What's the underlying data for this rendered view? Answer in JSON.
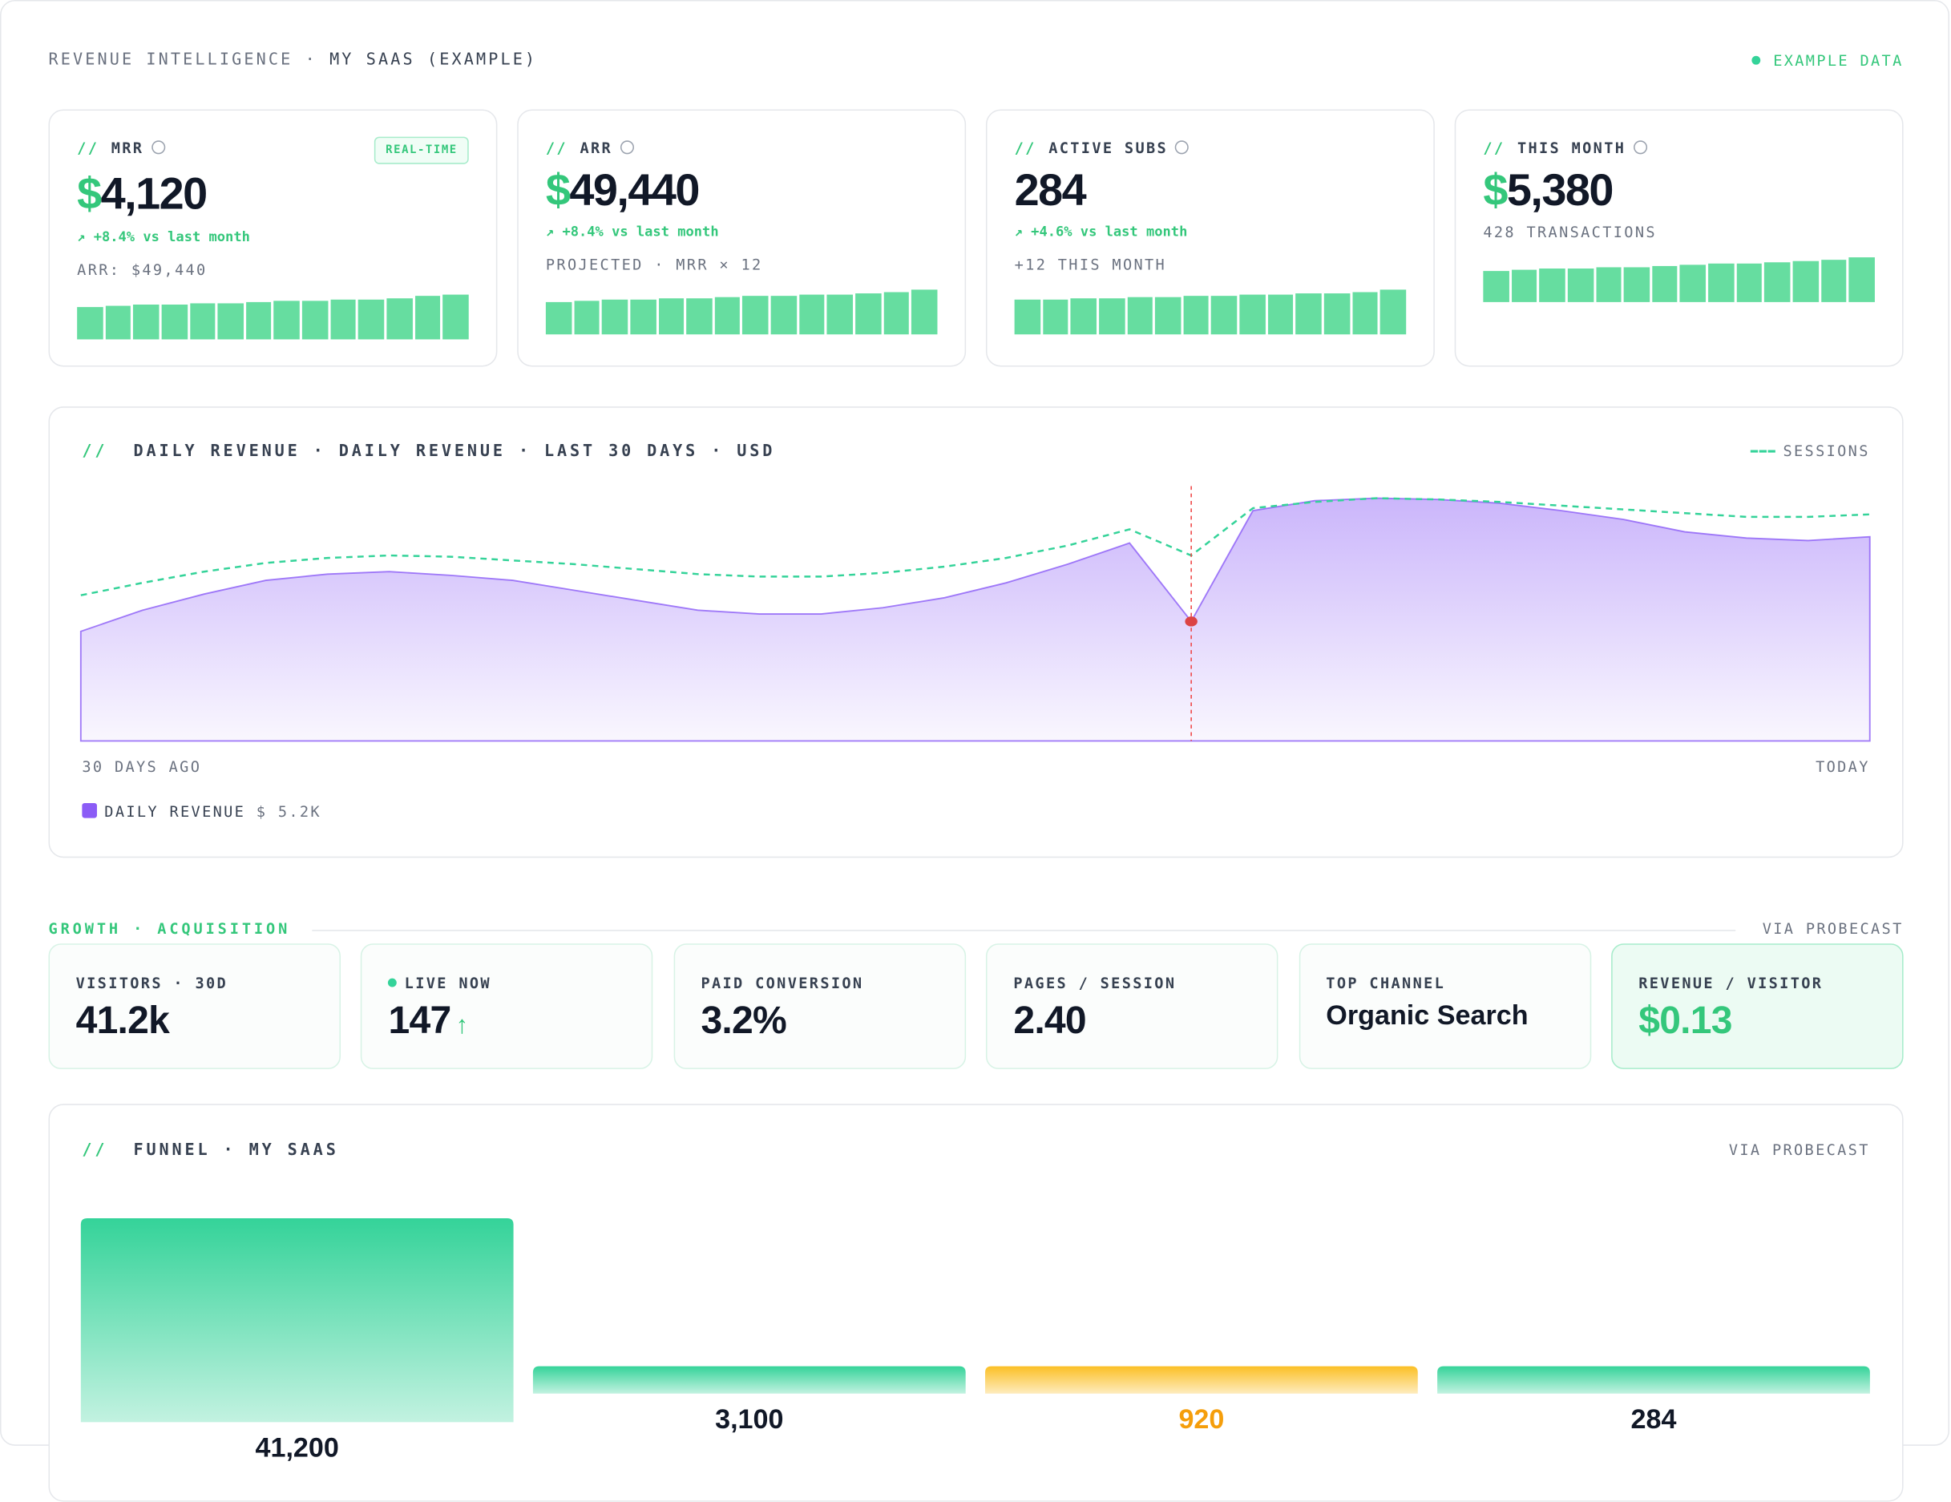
{
  "header": {
    "title": "REVENUE INTELLIGENCE",
    "subtitle": "MY SAAS (EXAMPLE)",
    "badge": "EXAMPLE DATA"
  },
  "comment_prefix": "//",
  "kpis": [
    {
      "label": "MRR",
      "badge": "REAL-TIME",
      "currency": "$",
      "value": "4,120",
      "change": "↗ +8.4% vs last month",
      "note": "ARR: $49,440",
      "spark": [
        26,
        27,
        28,
        28,
        29,
        29,
        30,
        31,
        31,
        32,
        32,
        33,
        35,
        36
      ]
    },
    {
      "label": "ARR",
      "currency": "$",
      "value": "49,440",
      "change": "↗ +8.4% vs last month",
      "note": "PROJECTED · MRR × 12",
      "spark": [
        26,
        27,
        28,
        28,
        29,
        29,
        30,
        31,
        31,
        32,
        32,
        33,
        34,
        36
      ]
    },
    {
      "label": "ACTIVE SUBS",
      "value": "284",
      "change": "↗ +4.6% vs last month",
      "note": "+12 THIS MONTH",
      "spark": [
        28,
        28,
        29,
        29,
        30,
        30,
        31,
        31,
        32,
        32,
        33,
        33,
        34,
        36
      ]
    },
    {
      "label": "THIS MONTH",
      "currency": "$",
      "value": "5,380",
      "note": "428 TRANSACTIONS",
      "spark": [
        25,
        26,
        27,
        27,
        28,
        28,
        29,
        30,
        31,
        31,
        32,
        33,
        34,
        36
      ]
    }
  ],
  "daily_chart": {
    "type": "area",
    "title": "DAILY REVENUE · DAILY REVENUE · LAST 30 DAYS · USD",
    "x_start": "30 DAYS AGO",
    "x_end": "TODAY",
    "highlight": 18,
    "series": [
      {
        "name": "DAILY REVENUE",
        "color": "#8b5cf6",
        "values": [
          88,
          105,
          118,
          129,
          134,
          136,
          133,
          129,
          121,
          113,
          105,
          102,
          102,
          107,
          115,
          127,
          142,
          159,
          96,
          185,
          193,
          195,
          194,
          191,
          185,
          178,
          168,
          163,
          161,
          164
        ]
      },
      {
        "name": "SESSIONS",
        "color": "#34d399",
        "values": [
          117,
          127,
          136,
          143,
          147,
          149,
          148,
          145,
          142,
          138,
          134,
          132,
          132,
          135,
          140,
          147,
          157,
          170,
          149,
          187,
          192,
          195,
          194,
          192,
          189,
          186,
          183,
          180,
          180,
          182
        ]
      }
    ],
    "legend_value": "$ 5.2K"
  },
  "growth": {
    "title": "GROWTH · ACQUISITION",
    "source": "VIA PROBECAST",
    "tiles": [
      {
        "label": "VISITORS · 30D",
        "value": "41.2k"
      },
      {
        "label": "LIVE NOW",
        "value": "147"
      },
      {
        "label": "PAID CONVERSION",
        "value": "3.2%"
      },
      {
        "label": "PAGES / SESSION",
        "value": "2.40"
      },
      {
        "label": "TOP CHANNEL",
        "value": "Organic Search"
      },
      {
        "label": "REVENUE / VISITOR",
        "value": "$0.13"
      }
    ]
  },
  "funnel": {
    "type": "bar",
    "title": "FUNNEL · MY SAAS",
    "source": "VIA PROBECAST",
    "values": [
      41200,
      3100,
      920,
      284
    ],
    "value_labels": [
      "41,200",
      "3,100",
      "920",
      "284"
    ],
    "colors": [
      "#34d399",
      "#34d399",
      "#fbbf24",
      "#34d399"
    ],
    "label_colors": [
      "#111827",
      "#111827",
      "#f59e0b",
      "#111827"
    ]
  }
}
